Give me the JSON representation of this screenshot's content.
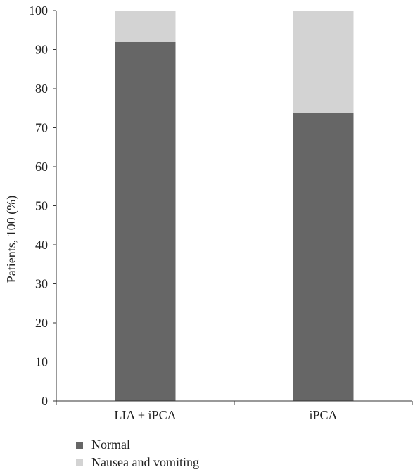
{
  "chart_data": {
    "type": "bar",
    "stacked": true,
    "categories": [
      "LIA + iPCA",
      "iPCA"
    ],
    "series": [
      {
        "name": "Normal",
        "values": [
          92.1,
          73.7
        ],
        "color": "#666666"
      },
      {
        "name": "Nausea and vomiting",
        "values": [
          7.9,
          26.3
        ],
        "color": "#d3d3d3"
      }
    ],
    "ylabel": "Patients, 100 (%)",
    "xlabel": "",
    "ylim": [
      0,
      100
    ],
    "yticks": [
      0,
      10,
      20,
      30,
      40,
      50,
      60,
      70,
      80,
      90,
      100
    ],
    "grid": false,
    "legend_position": "bottom-left"
  }
}
